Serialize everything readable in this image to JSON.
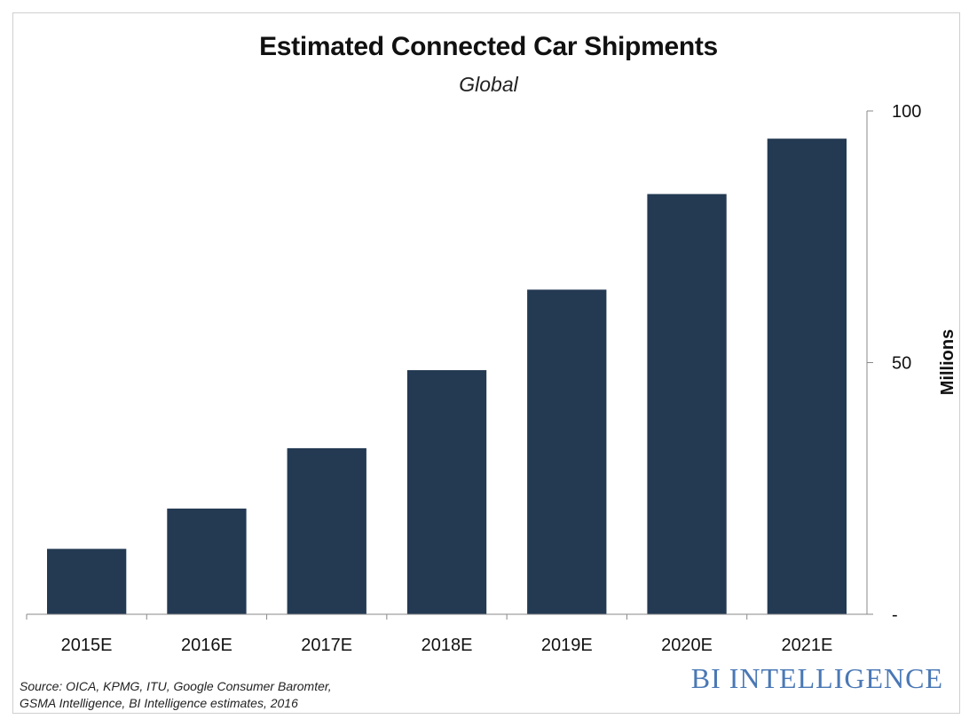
{
  "chart_data": {
    "type": "bar",
    "title": "Estimated Connected Car Shipments",
    "subtitle": "Global",
    "categories": [
      "2015E",
      "2016E",
      "2017E",
      "2018E",
      "2019E",
      "2020E",
      "2021E"
    ],
    "values": [
      13,
      21,
      33,
      48.5,
      64.5,
      83.5,
      94.5
    ],
    "ylabel": "Millions",
    "ylim": [
      0,
      100
    ],
    "yticks": [
      {
        "value": 0,
        "label": "-"
      },
      {
        "value": 50,
        "label": "50"
      },
      {
        "value": 100,
        "label": "100"
      }
    ],
    "y_axis_side": "right",
    "grid": false,
    "bar_color": "#243a53"
  },
  "source_line1": "Source: OICA, KPMG, ITU, Google Consumer Baromter,",
  "source_line2": "GSMA Intelligence, BI Intelligence estimates, 2016",
  "brand": "BI INTELLIGENCE",
  "brand_color": "#4a78b5"
}
